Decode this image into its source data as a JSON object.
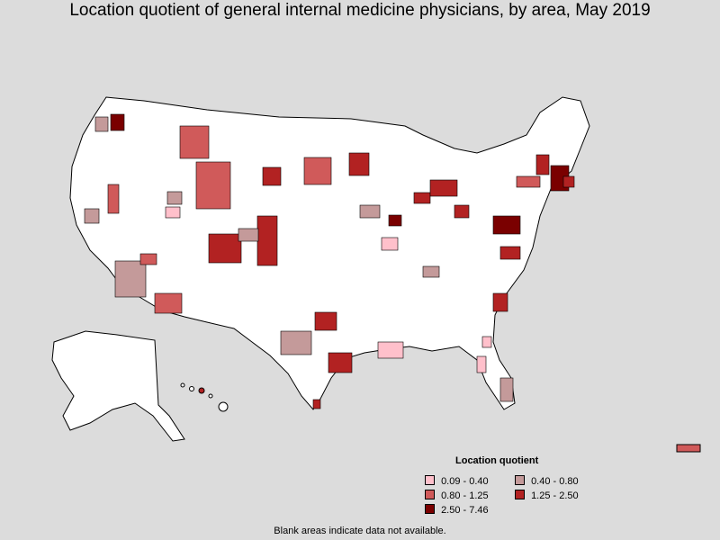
{
  "title": "Location quotient of general internal medicine physicians, by area, May 2019",
  "legend": {
    "title": "Location quotient",
    "items": [
      {
        "label": "0.09 - 0.40",
        "color": "#ffc0cb"
      },
      {
        "label": "0.40 - 0.80",
        "color": "#c49a9a"
      },
      {
        "label": "0.80 - 1.25",
        "color": "#d05a5a"
      },
      {
        "label": "1.25 - 2.50",
        "color": "#b22222"
      },
      {
        "label": "2.50 - 7.46",
        "color": "#7a0000"
      }
    ]
  },
  "footnote": "Blank areas indicate data not available.",
  "colors": {
    "background": "#dcdcdc",
    "land": "#ffffff",
    "border": "#000000"
  }
}
